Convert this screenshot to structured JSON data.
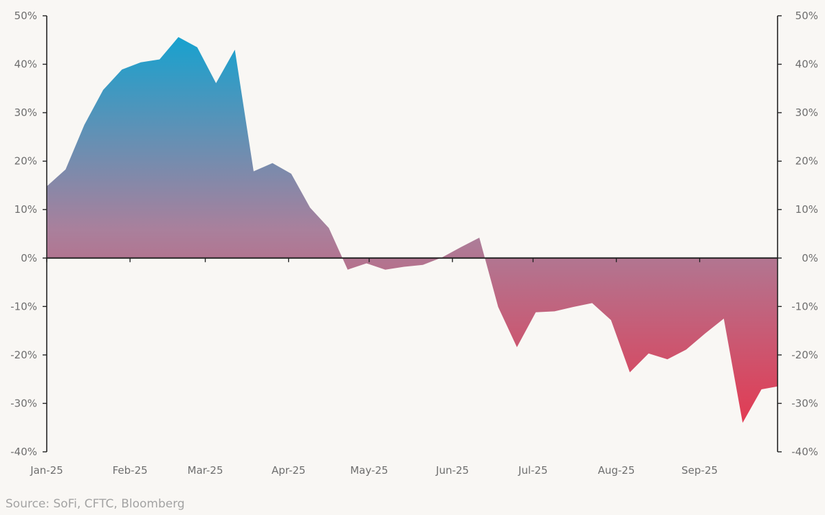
{
  "chart_data": {
    "type": "area",
    "title": "",
    "xlabel": "",
    "ylabel": "",
    "ylim": [
      -40,
      50
    ],
    "y_ticks": [
      50,
      40,
      30,
      20,
      10,
      0,
      -10,
      -20,
      -30,
      -40
    ],
    "y_tick_labels": [
      "50%",
      "40%",
      "30%",
      "20%",
      "10%",
      "0%",
      "-10%",
      "-20%",
      "-30%",
      "-40%"
    ],
    "y_axes": [
      "left",
      "right"
    ],
    "x_range": [
      "2025-01-01",
      "2025-09-30"
    ],
    "x_tick_dates": [
      "2025-01-01",
      "2025-02-01",
      "2025-03-01",
      "2025-04-01",
      "2025-05-01",
      "2025-06-01",
      "2025-07-01",
      "2025-08-01",
      "2025-09-01"
    ],
    "x_tick_labels": [
      "Jan-25",
      "Feb-25",
      "Mar-25",
      "Apr-25",
      "May-25",
      "Jun-25",
      "Jul-25",
      "Aug-25",
      "Sep-25"
    ],
    "grid": false,
    "zero_line": true,
    "gradient_colors": {
      "top": "#16a2cf",
      "middle": "#a9809c",
      "bottom": "#e23b53"
    },
    "series": [
      {
        "x": [
          "2025-01-01",
          "2025-01-08",
          "2025-01-15",
          "2025-01-22",
          "2025-01-29",
          "2025-02-05",
          "2025-02-12",
          "2025-02-19",
          "2025-02-26",
          "2025-03-05",
          "2025-03-12",
          "2025-03-19",
          "2025-03-26",
          "2025-04-02",
          "2025-04-09",
          "2025-04-16",
          "2025-04-23",
          "2025-04-30",
          "2025-05-07",
          "2025-05-14",
          "2025-05-21",
          "2025-05-28",
          "2025-06-04",
          "2025-06-11",
          "2025-06-18",
          "2025-06-25",
          "2025-07-02",
          "2025-07-09",
          "2025-07-16",
          "2025-07-23",
          "2025-07-30",
          "2025-08-06",
          "2025-08-13",
          "2025-08-20",
          "2025-08-27",
          "2025-09-03",
          "2025-09-10",
          "2025-09-17",
          "2025-09-24",
          "2025-09-30"
        ],
        "values": [
          14.8,
          18.3,
          27.5,
          34.7,
          38.9,
          40.4,
          41.0,
          45.6,
          43.5,
          36.1,
          43.0,
          17.9,
          19.6,
          17.4,
          10.4,
          6.2,
          -2.4,
          -1.1,
          -2.4,
          -1.8,
          -1.4,
          0.1,
          2.2,
          4.2,
          -10.1,
          -18.4,
          -11.2,
          -11.0,
          -10.1,
          -9.3,
          -12.8,
          -23.6,
          -19.7,
          -20.9,
          -18.9,
          -15.6,
          -12.5,
          -34.0,
          -27.1,
          -26.5
        ]
      }
    ]
  },
  "source_note": "Source: SoFi, CFTC, Bloomberg"
}
